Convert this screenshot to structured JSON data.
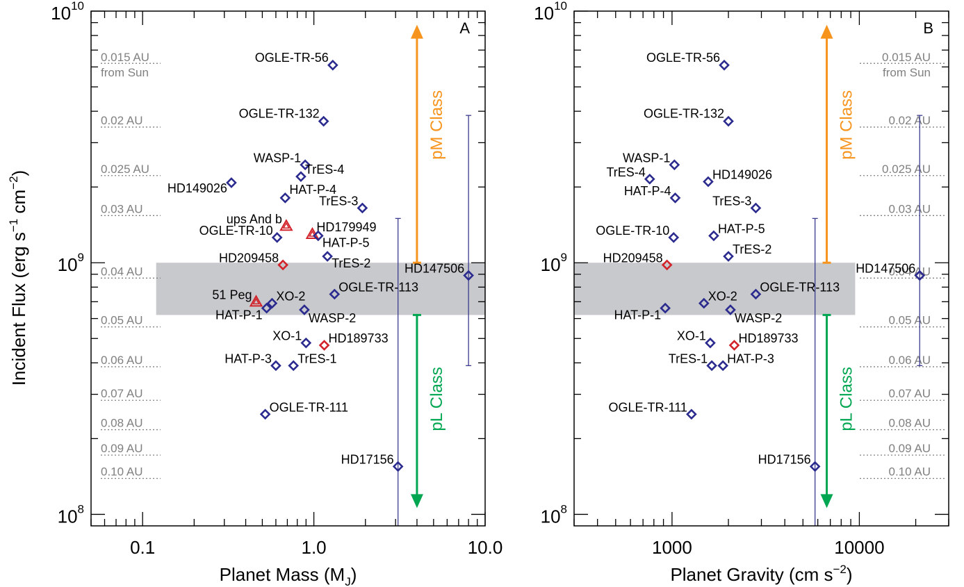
{
  "colors": {
    "axis": "#000000",
    "band": "#c8c9cc",
    "point_blue": "#2b2b8f",
    "point_red": "#d2232a",
    "pm": "#f7941d",
    "pl": "#00a651",
    "range_line": "#3b3b8f",
    "au_text": "#808080",
    "au_line": "#808080"
  },
  "shared_y": {
    "label_main": "Incident Flux (erg s",
    "label_exp1": "−1",
    "label_mid": " cm",
    "label_exp2": "−2",
    "label_end": ")",
    "scale": "log",
    "ylim": [
      90000000,
      10000000000
    ],
    "tick_base": "10",
    "tick_exps": [
      "10",
      "9",
      "8"
    ]
  },
  "au_scale": [
    {
      "flux": 62000000,
      "label": "0.015 AU",
      "label2": "from Sun"
    },
    {
      "flux": 34600000,
      "label": "0.02 AU"
    },
    {
      "flux": 22200000,
      "label": "0.025 AU"
    },
    {
      "flux": 15400000,
      "label": "0.03 AU"
    },
    {
      "flux": 8690000,
      "label": "0.04 AU"
    },
    {
      "flux": 5560000,
      "label": "0.05 AU"
    },
    {
      "flux": 3860000,
      "label": "0.06 AU"
    },
    {
      "flux": 2840000,
      "label": "0.07 AU"
    },
    {
      "flux": 2170000,
      "label": "0.08 AU"
    },
    {
      "flux": 1720000,
      "label": "0.09 AU"
    },
    {
      "flux": 1390000,
      "label": "0.10 AU"
    }
  ],
  "annotations": {
    "pm_label": "pM Class",
    "pl_label": "pL Class"
  },
  "chart_data": [
    {
      "type": "scatter",
      "panel_label": "A",
      "xlabel": "Planet Mass (M",
      "xlabel_sub": "J",
      "xlabel_end": ")",
      "xscale": "log",
      "xlim": [
        0.05,
        10.0
      ],
      "x_tick_labels": [
        {
          "v": 0.1,
          "t": "0.1"
        },
        {
          "v": 1.0,
          "t": "1.0"
        },
        {
          "v": 10.0,
          "t": "10.0"
        }
      ],
      "band": {
        "x": [
          0.12,
          10.0
        ],
        "y": [
          620000000,
          1000000000
        ]
      },
      "pm_arrow": {
        "x": 4.0,
        "y_from": 1000000000,
        "y_to": 8500000000
      },
      "pl_arrow": {
        "x": 4.0,
        "y_from": 620000000,
        "y_to": 110000000
      },
      "ranges": [
        {
          "x": 3.1,
          "y": [
            90000000,
            1500000000
          ]
        },
        {
          "x": 8.0,
          "y": [
            390000000,
            3850000000
          ]
        }
      ],
      "points": [
        {
          "name": "OGLE-TR-56",
          "x": 1.29,
          "y": 6100000000,
          "shape": "diamond",
          "color": "blue",
          "lx": -1,
          "ly": -5
        },
        {
          "name": "OGLE-TR-132",
          "x": 1.14,
          "y": 3650000000,
          "shape": "diamond",
          "color": "blue",
          "lx": -1,
          "ly": -5
        },
        {
          "name": "WASP-1",
          "x": 0.89,
          "y": 2450000000,
          "shape": "diamond",
          "color": "blue",
          "lx": -1,
          "ly": -4
        },
        {
          "name": "TrES-4",
          "x": 0.84,
          "y": 2200000000,
          "shape": "diamond",
          "color": "blue",
          "lx": 1,
          "ly": -4
        },
        {
          "name": "HD149026",
          "x": 0.33,
          "y": 2080000000,
          "shape": "diamond",
          "color": "blue",
          "lx": -1,
          "ly": 14
        },
        {
          "name": "HAT-P-4",
          "x": 0.68,
          "y": 1810000000,
          "shape": "diamond",
          "color": "blue",
          "lx": 1,
          "ly": -6
        },
        {
          "name": "TrES-3",
          "x": 1.92,
          "y": 1650000000,
          "shape": "diamond",
          "color": "blue",
          "lx": -1,
          "ly": -4
        },
        {
          "name": "ups And b",
          "x": 0.69,
          "y": 1400000000,
          "shape": "triangle",
          "color": "red",
          "lx": -1,
          "ly": -4
        },
        {
          "name": "HD179949",
          "x": 0.98,
          "y": 1300000000,
          "shape": "triangle",
          "color": "red",
          "lx": 1,
          "ly": -4
        },
        {
          "name": "OGLE-TR-10",
          "x": 0.61,
          "y": 1260000000,
          "shape": "diamond",
          "color": "blue",
          "lx": -1,
          "ly": -4
        },
        {
          "name": "HAT-P-5",
          "x": 1.06,
          "y": 1280000000,
          "shape": "diamond",
          "color": "blue",
          "lx": 1,
          "ly": 16
        },
        {
          "name": "TrES-2",
          "x": 1.2,
          "y": 1060000000,
          "shape": "diamond",
          "color": "blue",
          "lx": 1,
          "ly": 16
        },
        {
          "name": "HD209458",
          "x": 0.66,
          "y": 980000000,
          "shape": "diamond",
          "color": "red",
          "lx": -1,
          "ly": -4
        },
        {
          "name": "HD147506",
          "x": 8.0,
          "y": 890000000,
          "shape": "diamond",
          "color": "blue",
          "lx": -1,
          "ly": -4
        },
        {
          "name": "OGLE-TR-113",
          "x": 1.32,
          "y": 750000000,
          "shape": "diamond",
          "color": "blue",
          "lx": 1,
          "ly": -4
        },
        {
          "name": "51 Peg",
          "x": 0.46,
          "y": 700000000,
          "shape": "triangle",
          "color": "red",
          "lx": -1,
          "ly": -4
        },
        {
          "name": "XO-2",
          "x": 0.57,
          "y": 690000000,
          "shape": "diamond",
          "color": "blue",
          "lx": 1,
          "ly": -4
        },
        {
          "name": "HAT-P-1",
          "x": 0.53,
          "y": 660000000,
          "shape": "diamond",
          "color": "blue",
          "lx": -1,
          "ly": 16
        },
        {
          "name": "WASP-2",
          "x": 0.88,
          "y": 650000000,
          "shape": "diamond",
          "color": "blue",
          "lx": 1,
          "ly": 18
        },
        {
          "name": "XO-1",
          "x": 0.9,
          "y": 480000000,
          "shape": "diamond",
          "color": "blue",
          "lx": -1,
          "ly": -4
        },
        {
          "name": "HD189733",
          "x": 1.15,
          "y": 470000000,
          "shape": "diamond",
          "color": "red",
          "lx": 1,
          "ly": -4
        },
        {
          "name": "HAT-P-3",
          "x": 0.6,
          "y": 390000000,
          "shape": "diamond",
          "color": "blue",
          "lx": -1,
          "ly": -4
        },
        {
          "name": "TrES-1",
          "x": 0.76,
          "y": 390000000,
          "shape": "diamond",
          "color": "blue",
          "lx": 1,
          "ly": -4
        },
        {
          "name": "OGLE-TR-111",
          "x": 0.52,
          "y": 250000000,
          "shape": "diamond",
          "color": "blue",
          "lx": 1,
          "ly": -4
        },
        {
          "name": "HD17156",
          "x": 3.1,
          "y": 155000000,
          "shape": "diamond",
          "color": "blue",
          "lx": -1,
          "ly": -4
        }
      ]
    },
    {
      "type": "scatter",
      "panel_label": "B",
      "xlabel": "Planet Gravity (cm s",
      "xlabel_sup": "−2",
      "xlabel_end": ")",
      "xscale": "log",
      "xlim": [
        300,
        30000
      ],
      "x_tick_labels": [
        {
          "v": 1000,
          "t": "1000"
        },
        {
          "v": 10000,
          "t": "10000"
        }
      ],
      "band": {
        "x": [
          300,
          9500
        ],
        "y": [
          620000000,
          1000000000
        ]
      },
      "pm_arrow": {
        "x": 6700,
        "y_from": 1000000000,
        "y_to": 8500000000
      },
      "pl_arrow": {
        "x": 6700,
        "y_from": 620000000,
        "y_to": 110000000
      },
      "ranges": [
        {
          "x": 5800,
          "y": [
            90000000,
            1500000000
          ]
        },
        {
          "x": 21000,
          "y": [
            390000000,
            3850000000
          ]
        }
      ],
      "points": [
        {
          "name": "OGLE-TR-56",
          "x": 1900,
          "y": 6100000000,
          "shape": "diamond",
          "color": "blue",
          "lx": -1,
          "ly": -5
        },
        {
          "name": "OGLE-TR-132",
          "x": 2000,
          "y": 3650000000,
          "shape": "diamond",
          "color": "blue",
          "lx": -1,
          "ly": -5
        },
        {
          "name": "WASP-1",
          "x": 1030,
          "y": 2450000000,
          "shape": "diamond",
          "color": "blue",
          "lx": -1,
          "ly": -4
        },
        {
          "name": "TrES-4",
          "x": 760,
          "y": 2150000000,
          "shape": "diamond",
          "color": "blue",
          "lx": -1,
          "ly": -4
        },
        {
          "name": "HD149026",
          "x": 1560,
          "y": 2100000000,
          "shape": "diamond",
          "color": "blue",
          "lx": 1,
          "ly": -4
        },
        {
          "name": "HAT-P-4",
          "x": 1040,
          "y": 1810000000,
          "shape": "diamond",
          "color": "blue",
          "lx": -1,
          "ly": -4
        },
        {
          "name": "TrES-3",
          "x": 2800,
          "y": 1650000000,
          "shape": "diamond",
          "color": "blue",
          "lx": -1,
          "ly": -4
        },
        {
          "name": "OGLE-TR-10",
          "x": 1020,
          "y": 1260000000,
          "shape": "diamond",
          "color": "blue",
          "lx": -1,
          "ly": -4
        },
        {
          "name": "HAT-P-5",
          "x": 1670,
          "y": 1280000000,
          "shape": "diamond",
          "color": "blue",
          "lx": 1,
          "ly": -4
        },
        {
          "name": "TrES-2",
          "x": 2000,
          "y": 1060000000,
          "shape": "diamond",
          "color": "blue",
          "lx": 1,
          "ly": -4
        },
        {
          "name": "HD209458",
          "x": 940,
          "y": 980000000,
          "shape": "diamond",
          "color": "red",
          "lx": -1,
          "ly": -4
        },
        {
          "name": "HD147506",
          "x": 21000,
          "y": 890000000,
          "shape": "diamond",
          "color": "blue",
          "lx": -1,
          "ly": -4
        },
        {
          "name": "OGLE-TR-113",
          "x": 2800,
          "y": 750000000,
          "shape": "diamond",
          "color": "blue",
          "lx": 1,
          "ly": -4
        },
        {
          "name": "XO-2",
          "x": 1480,
          "y": 690000000,
          "shape": "diamond",
          "color": "blue",
          "lx": 1,
          "ly": -4
        },
        {
          "name": "HAT-P-1",
          "x": 920,
          "y": 660000000,
          "shape": "diamond",
          "color": "blue",
          "lx": -1,
          "ly": 16
        },
        {
          "name": "WASP-2",
          "x": 2050,
          "y": 650000000,
          "shape": "diamond",
          "color": "blue",
          "lx": 1,
          "ly": 18
        },
        {
          "name": "XO-1",
          "x": 1600,
          "y": 480000000,
          "shape": "diamond",
          "color": "blue",
          "lx": -1,
          "ly": -4
        },
        {
          "name": "HD189733",
          "x": 2150,
          "y": 470000000,
          "shape": "diamond",
          "color": "red",
          "lx": 1,
          "ly": -4
        },
        {
          "name": "TrES-1",
          "x": 1630,
          "y": 390000000,
          "shape": "diamond",
          "color": "blue",
          "lx": -1,
          "ly": -4
        },
        {
          "name": "HAT-P-3",
          "x": 1870,
          "y": 390000000,
          "shape": "diamond",
          "color": "blue",
          "lx": 1,
          "ly": -4
        },
        {
          "name": "OGLE-TR-111",
          "x": 1270,
          "y": 250000000,
          "shape": "diamond",
          "color": "blue",
          "lx": -1,
          "ly": -4
        },
        {
          "name": "HD17156",
          "x": 5800,
          "y": 155000000,
          "shape": "diamond",
          "color": "blue",
          "lx": -1,
          "ly": -4
        }
      ]
    }
  ]
}
